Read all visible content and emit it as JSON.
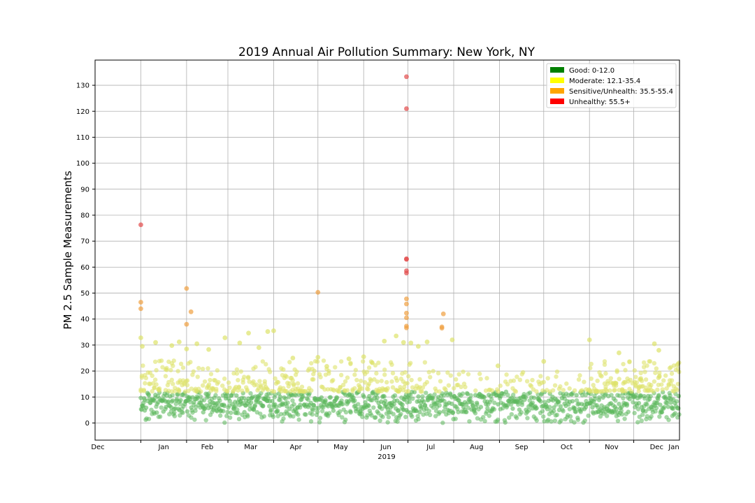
{
  "chart_data": {
    "type": "scatter",
    "title": "2019 Annual Air Pollution Summary: New York, NY",
    "ylabel": "PM 2.5 Sample Measurements",
    "xlabel": "2019",
    "x_tick_labels": [
      "Dec",
      "Jan",
      "Feb",
      "Mar",
      "Apr",
      "May",
      "Jun",
      "Jul",
      "Aug",
      "Sep",
      "Oct",
      "Nov",
      "Dec",
      "Jan"
    ],
    "y_ticks": [
      0,
      10,
      20,
      30,
      40,
      50,
      60,
      70,
      80,
      90,
      100,
      110,
      120,
      130
    ],
    "xlim": [
      "2018-12-01",
      "2020-01-01"
    ],
    "ylim": [
      -6.6,
      139.7
    ],
    "grid": true,
    "legend_position": "top-right",
    "legend": [
      {
        "label": "Good: 0-12.0",
        "color": "#008000"
      },
      {
        "label": "Moderate: 12.1-35.4",
        "color": "#ffff00"
      },
      {
        "label": "Sensitive/Unhealth: 35.5-55.4",
        "color": "#ffa500"
      },
      {
        "label": "Unhealthy: 55.5+",
        "color": "#ff0000"
      }
    ],
    "series": [
      {
        "category": "good",
        "color": "#5cb85c",
        "range": [
          0,
          12.0
        ],
        "points": []
      },
      {
        "category": "moderate",
        "color": "#dde26a",
        "range": [
          12.1,
          35.4
        ],
        "points": [
          {
            "x": "2019-01-01",
            "y": 32.8
          },
          {
            "x": "2019-01-02",
            "y": 29.5
          },
          {
            "x": "2019-01-11",
            "y": 31.0
          },
          {
            "x": "2019-01-22",
            "y": 29.8
          },
          {
            "x": "2019-01-27",
            "y": 31.2
          },
          {
            "x": "2019-02-01",
            "y": 28.5
          },
          {
            "x": "2019-02-08",
            "y": 30.5
          },
          {
            "x": "2019-02-16",
            "y": 28.3
          },
          {
            "x": "2019-02-27",
            "y": 32.8
          },
          {
            "x": "2019-03-09",
            "y": 30.8
          },
          {
            "x": "2019-03-15",
            "y": 34.6
          },
          {
            "x": "2019-03-22",
            "y": 29.0
          },
          {
            "x": "2019-03-28",
            "y": 35.2
          },
          {
            "x": "2019-04-01",
            "y": 35.5
          },
          {
            "x": "2019-04-14",
            "y": 25.0
          },
          {
            "x": "2019-05-01",
            "y": 25.3
          },
          {
            "x": "2019-05-07",
            "y": 21.8
          },
          {
            "x": "2019-05-22",
            "y": 24.7
          },
          {
            "x": "2019-06-01",
            "y": 25.5
          },
          {
            "x": "2019-06-15",
            "y": 31.5
          },
          {
            "x": "2019-06-23",
            "y": 33.5
          },
          {
            "x": "2019-06-28",
            "y": 31.0
          },
          {
            "x": "2019-07-03",
            "y": 30.8
          },
          {
            "x": "2019-07-08",
            "y": 29.5
          },
          {
            "x": "2019-07-14",
            "y": 31.2
          },
          {
            "x": "2019-07-31",
            "y": 32.0
          },
          {
            "x": "2019-08-31",
            "y": 22.0
          },
          {
            "x": "2019-10-01",
            "y": 23.7
          },
          {
            "x": "2019-11-01",
            "y": 32.0
          },
          {
            "x": "2019-11-21",
            "y": 27.0
          },
          {
            "x": "2019-12-15",
            "y": 30.5
          },
          {
            "x": "2019-12-18",
            "y": 28.0
          }
        ]
      },
      {
        "category": "sensitive",
        "color": "#f0a040",
        "range": [
          35.5,
          55.4
        ],
        "points": [
          {
            "x": "2019-01-01",
            "y": 46.5
          },
          {
            "x": "2019-01-01",
            "y": 44.0
          },
          {
            "x": "2019-02-01",
            "y": 51.8
          },
          {
            "x": "2019-02-01",
            "y": 38.0
          },
          {
            "x": "2019-02-04",
            "y": 42.8
          },
          {
            "x": "2019-05-01",
            "y": 50.3
          },
          {
            "x": "2019-06-30",
            "y": 47.8
          },
          {
            "x": "2019-06-30",
            "y": 45.8
          },
          {
            "x": "2019-06-30",
            "y": 42.3
          },
          {
            "x": "2019-06-30",
            "y": 40.5
          },
          {
            "x": "2019-06-30",
            "y": 37.3
          },
          {
            "x": "2019-06-30",
            "y": 36.6
          },
          {
            "x": "2019-07-25",
            "y": 42.0
          },
          {
            "x": "2019-07-24",
            "y": 37.0
          },
          {
            "x": "2019-07-24",
            "y": 36.5
          }
        ]
      },
      {
        "category": "unhealthy",
        "color": "#e34a4a",
        "range": [
          55.5,
          200
        ],
        "points": [
          {
            "x": "2019-01-01",
            "y": 76.3
          },
          {
            "x": "2019-06-30",
            "y": 133.3
          },
          {
            "x": "2019-06-30",
            "y": 121.0
          },
          {
            "x": "2019-06-30",
            "y": 63.2
          },
          {
            "x": "2019-06-30",
            "y": 63.0
          },
          {
            "x": "2019-06-30",
            "y": 58.6
          },
          {
            "x": "2019-06-30",
            "y": 57.7
          }
        ]
      }
    ]
  }
}
